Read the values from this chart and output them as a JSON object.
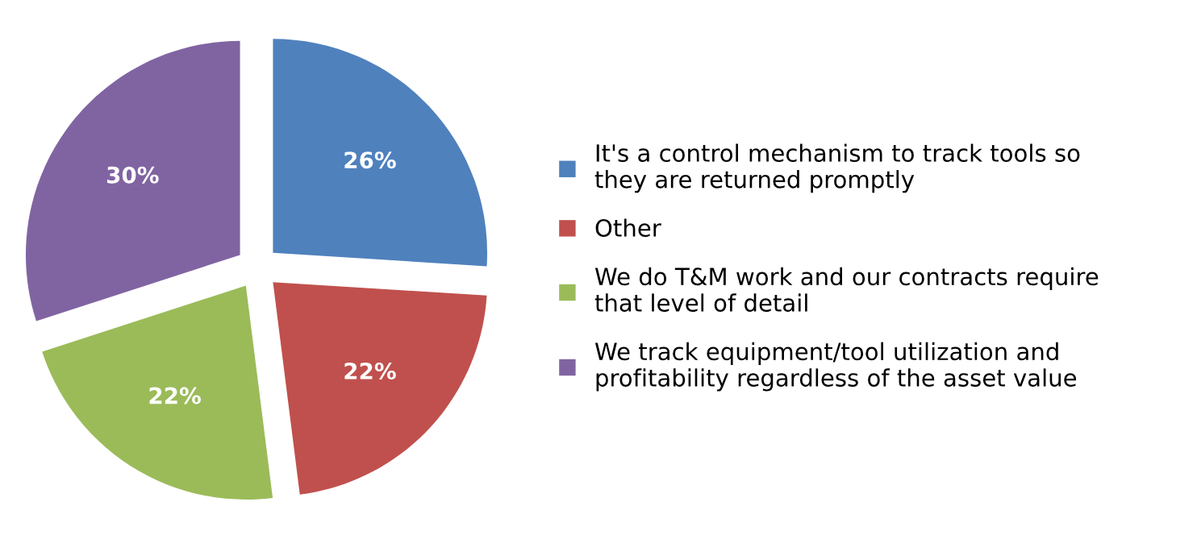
{
  "chart_data": {
    "type": "pie",
    "categories": [
      "It's a control mechanism to track tools so\nthey are returned promptly",
      "Other",
      "We do T&M work and our contracts require\nthat level of detail",
      "We track equipment/tool utilization and\nprofitability regardless of the asset value"
    ],
    "values": [
      26,
      22,
      22,
      30
    ],
    "colors": [
      "#4f81bd",
      "#c0504d",
      "#9bbb59",
      "#8064a2"
    ],
    "value_labels": [
      "26%",
      "22%",
      "22%",
      "30%"
    ],
    "legend": "right"
  }
}
